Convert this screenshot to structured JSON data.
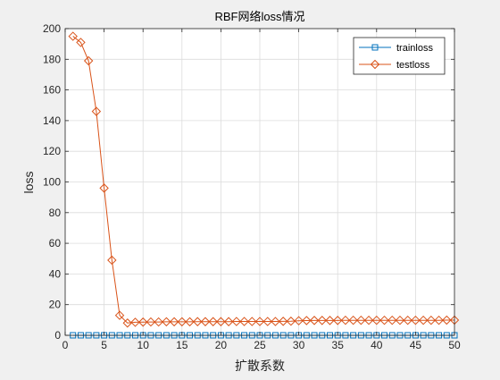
{
  "chart_data": {
    "type": "line",
    "title": "RBF网络loss情况",
    "xlabel": "扩散系数",
    "ylabel": "loss",
    "xlim": [
      0,
      50
    ],
    "ylim": [
      0,
      200
    ],
    "xticks": [
      0,
      5,
      10,
      15,
      20,
      25,
      30,
      35,
      40,
      45,
      50
    ],
    "yticks": [
      0,
      20,
      40,
      60,
      80,
      100,
      120,
      140,
      160,
      180,
      200
    ],
    "grid": true,
    "legend_position": "top-right",
    "x": [
      1,
      2,
      3,
      4,
      5,
      6,
      7,
      8,
      9,
      10,
      11,
      12,
      13,
      14,
      15,
      16,
      17,
      18,
      19,
      20,
      21,
      22,
      23,
      24,
      25,
      26,
      27,
      28,
      29,
      30,
      31,
      32,
      33,
      34,
      35,
      36,
      37,
      38,
      39,
      40,
      41,
      42,
      43,
      44,
      45,
      46,
      47,
      48,
      49,
      50
    ],
    "series": [
      {
        "name": "trainloss",
        "color": "#0072bd",
        "marker": "square",
        "values": [
          0,
          0,
          0,
          0,
          0,
          0,
          0,
          0,
          0,
          0,
          0,
          0,
          0,
          0,
          0,
          0,
          0,
          0,
          0,
          0,
          0,
          0,
          0,
          0,
          0,
          0,
          0,
          0,
          0,
          0,
          0,
          0,
          0,
          0,
          0,
          0,
          0,
          0,
          0,
          0,
          0,
          0,
          0,
          0,
          0,
          0,
          0,
          0,
          0,
          0
        ]
      },
      {
        "name": "testloss",
        "color": "#d95319",
        "marker": "diamond",
        "values": [
          195,
          191,
          179,
          146,
          96,
          49,
          13,
          8,
          8.5,
          8.6,
          8.7,
          8.7,
          8.8,
          8.8,
          8.8,
          8.8,
          8.9,
          8.9,
          8.9,
          8.9,
          8.9,
          9,
          9,
          9,
          9,
          9,
          9,
          9.1,
          9.2,
          9.5,
          9.6,
          9.7,
          9.7,
          9.7,
          9.7,
          9.8,
          9.8,
          9.8,
          9.8,
          9.8,
          9.8,
          9.8,
          9.8,
          9.8,
          9.8,
          9.8,
          9.8,
          9.8,
          9.9,
          9.9
        ]
      }
    ]
  }
}
